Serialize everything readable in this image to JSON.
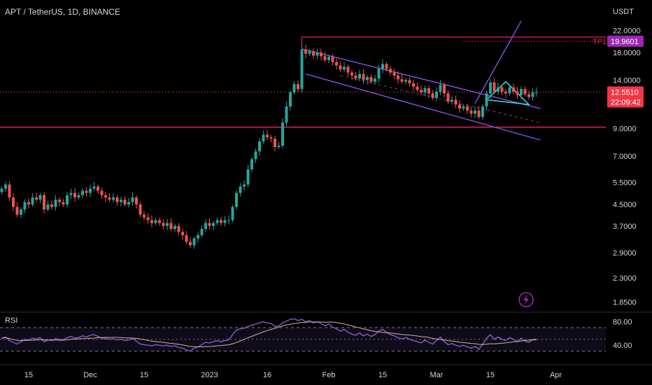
{
  "header": {
    "title": "APT / TetherUS, 1D, BINANCE"
  },
  "price_axis": {
    "unit": "USDT",
    "ticks": [
      22.0,
      18.0,
      14.0,
      9.0,
      7.0,
      5.5,
      4.5,
      3.7,
      2.9,
      2.3,
      1.85
    ],
    "tick_labels": [
      "22.0000",
      "18.0000",
      "14.0000",
      "9.0000",
      "7.0000",
      "5.5000",
      "4.5000",
      "3.7000",
      "2.9000",
      "2.3000",
      "1.8500"
    ]
  },
  "badges": {
    "tp1_label": "TP1",
    "tp1_value": "19.9601",
    "last_price": "12.5510",
    "countdown": "22:09:42"
  },
  "rsi": {
    "label": "RSI",
    "ticks": [
      "80.00",
      "40.00"
    ]
  },
  "colors": {
    "up": "#26a69a",
    "down": "#ef5350",
    "channel": "#7b4fd6",
    "triangle": "#3ed6e6",
    "rsi_line": "#7e57c2",
    "rsi_ma": "#c9b99a",
    "level_line": "#e91e63"
  },
  "chart_data": {
    "type": "candlestick",
    "title": "APT / TetherUS, 1D, BINANCE",
    "y_scale": "log",
    "ylim": [
      1.75,
      24.0
    ],
    "x_ticks": [
      {
        "label": "15",
        "day": 7
      },
      {
        "label": "Dec",
        "day": 23
      },
      {
        "label": "15",
        "day": 37
      },
      {
        "label": "2023",
        "day": 54
      },
      {
        "label": "16",
        "day": 69
      },
      {
        "label": "Feb",
        "day": 85
      },
      {
        "label": "15",
        "day": 99
      },
      {
        "label": "Mar",
        "day": 113
      },
      {
        "label": "15",
        "day": 127
      },
      {
        "label": "Apr",
        "day": 144
      }
    ],
    "candles_close": [
      5.2,
      5.4,
      4.8,
      4.4,
      4.1,
      4.3,
      4.6,
      4.5,
      4.8,
      4.7,
      4.9,
      4.3,
      4.5,
      4.4,
      4.7,
      4.6,
      4.5,
      4.9,
      5.0,
      4.8,
      4.9,
      5.1,
      5.0,
      5.2,
      5.3,
      5.1,
      4.9,
      4.8,
      4.7,
      4.8,
      4.6,
      4.7,
      4.5,
      4.6,
      4.8,
      4.5,
      4.1,
      4.0,
      3.9,
      3.8,
      3.9,
      3.8,
      3.7,
      3.8,
      3.6,
      3.7,
      3.5,
      3.4,
      3.2,
      3.1,
      3.3,
      3.4,
      3.6,
      3.8,
      3.7,
      3.8,
      3.9,
      3.8,
      3.9,
      3.9,
      4.4,
      5.0,
      5.3,
      5.4,
      6.2,
      6.8,
      7.3,
      8.0,
      8.5,
      8.3,
      8.2,
      7.6,
      7.7,
      9.5,
      11.0,
      12.5,
      13.5,
      12.9,
      18.5,
      17.8,
      18.2,
      17.5,
      18.0,
      17.4,
      16.8,
      17.3,
      16.5,
      16.0,
      15.4,
      15.8,
      15.0,
      14.6,
      14.2,
      14.8,
      14.0,
      14.4,
      13.8,
      14.2,
      15.5,
      16.2,
      15.5,
      15.0,
      14.6,
      14.1,
      13.8,
      14.0,
      13.6,
      13.2,
      12.8,
      12.5,
      13.0,
      12.4,
      11.9,
      12.6,
      13.4,
      12.4,
      11.5,
      11.7,
      11.2,
      10.8,
      11.0,
      10.6,
      10.3,
      10.6,
      10.0,
      11.0,
      12.4,
      13.7,
      12.6,
      13.1,
      12.6,
      12.4,
      13.1,
      12.6,
      12.2,
      12.9,
      12.3,
      12.0,
      12.5,
      12.55
    ],
    "annotations": [
      "TP1 19.9601",
      "last 12.5510"
    ],
    "rsi_values": [
      52,
      54,
      48,
      45,
      42,
      46,
      50,
      49,
      52,
      51,
      53,
      46,
      49,
      48,
      51,
      50,
      49,
      53,
      55,
      52,
      53,
      56,
      54,
      57,
      58,
      55,
      52,
      51,
      50,
      51,
      49,
      50,
      48,
      49,
      51,
      47,
      42,
      41,
      40,
      39,
      41,
      40,
      39,
      40,
      38,
      39,
      36,
      35,
      32,
      30,
      35,
      37,
      41,
      45,
      44,
      46,
      48,
      46,
      48,
      49,
      58,
      66,
      68,
      69,
      72,
      74,
      76,
      78,
      80,
      78,
      77,
      72,
      73,
      78,
      81,
      84,
      85,
      82,
      84,
      80,
      82,
      78,
      80,
      77,
      73,
      76,
      71,
      68,
      64,
      67,
      62,
      59,
      57,
      61,
      56,
      59,
      55,
      58,
      64,
      67,
      62,
      58,
      56,
      53,
      51,
      53,
      50,
      48,
      46,
      44,
      49,
      45,
      42,
      48,
      54,
      46,
      41,
      43,
      40,
      38,
      40,
      37,
      35,
      38,
      33,
      42,
      52,
      58,
      50,
      54,
      50,
      48,
      53,
      50,
      46,
      52,
      47,
      45,
      49,
      49
    ],
    "rsi_ylim": [
      20,
      95
    ]
  }
}
